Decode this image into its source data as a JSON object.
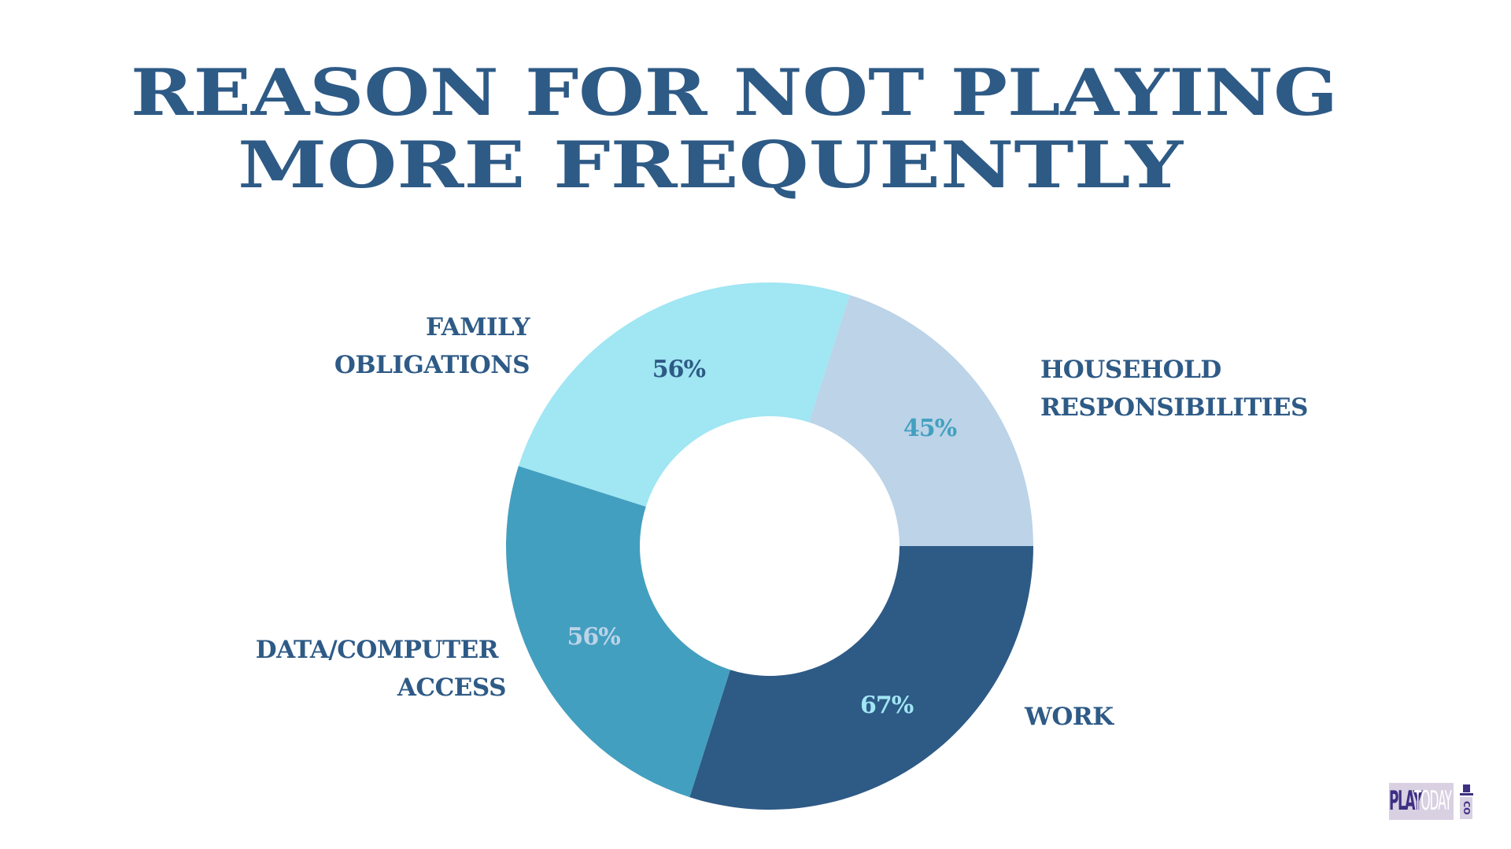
{
  "title": {
    "line1": "REASON FOR NOT PLAYING",
    "line2": "MORE FREQUENTLY",
    "color": "#2e5a86"
  },
  "labels": {
    "family": {
      "line1": "FAMILY",
      "line2": "OBLIGATIONS"
    },
    "household": {
      "line1": "HOUSEHOLD",
      "line2": "RESPONSIBILITIES"
    },
    "data_access": {
      "line1": "DATA/COMPUTER",
      "line2": "ACCESS"
    },
    "work": {
      "line1": "WORK"
    }
  },
  "logo": {
    "play": "PLAY",
    "today": "TODAY",
    "co": "CO",
    "primary_color": "#3d2f82",
    "background_color": "#d9d0e2"
  },
  "chart_data": {
    "type": "pie",
    "variant": "donut",
    "title": "REASON FOR NOT PLAYING MORE FREQUENTLY",
    "categories": [
      "WORK",
      "DATA/COMPUTER ACCESS",
      "FAMILY OBLIGATIONS",
      "HOUSEHOLD RESPONSIBILITIES"
    ],
    "values": [
      67,
      56,
      56,
      45
    ],
    "value_labels": [
      "67%",
      "56%",
      "56%",
      "45%"
    ],
    "unit": "%",
    "colors": [
      "#2e5a86",
      "#439fbf",
      "#a0e6f3",
      "#bcd3e8"
    ],
    "value_label_colors": [
      "#a0e6f3",
      "#bcd3e8",
      "#2e5a86",
      "#43a0bf"
    ],
    "start_angle_deg": 0,
    "direction": "clockwise",
    "legend": "none (labels placed beside slices)",
    "grid": false
  }
}
